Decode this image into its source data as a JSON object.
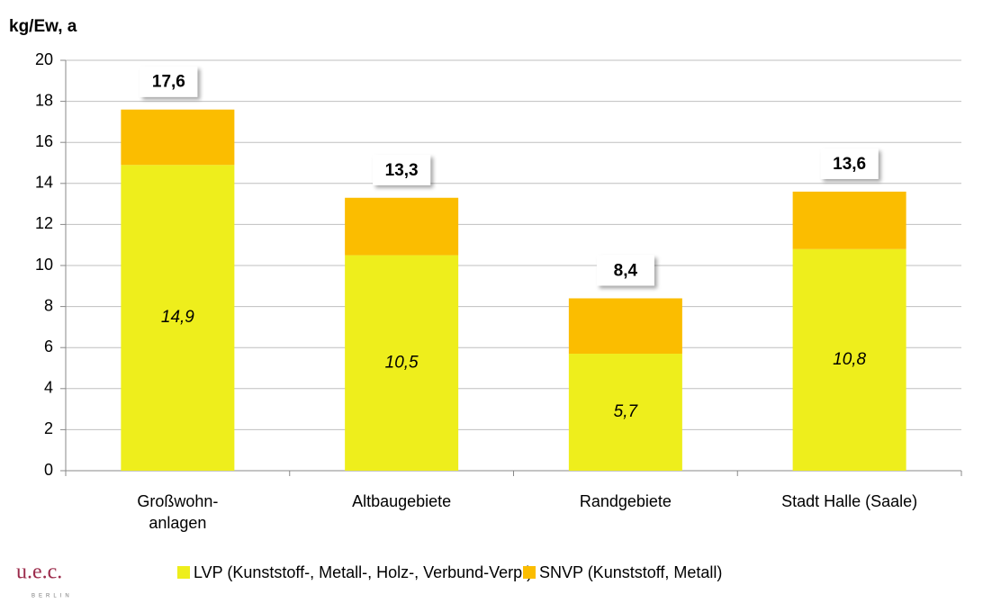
{
  "chart_data": {
    "type": "stacked_bar",
    "y_axis_title": "kg/Ew, a",
    "categories": [
      "Großwohn-\nanlagen",
      "Altbaugebiete",
      "Randgebiete",
      "Stadt Halle (Saale)"
    ],
    "series": [
      {
        "name": "LVP (Kunststoff-, Metall-, Holz-, Verbund-Verp.)",
        "color": "#eeee1c",
        "values": [
          14.9,
          10.5,
          5.7,
          10.8
        ],
        "value_labels": [
          "14,9",
          "10,5",
          "5,7",
          "10,8"
        ]
      },
      {
        "name": "SNVP (Kunststoff, Metall)",
        "color": "#fbbd00",
        "values": [
          2.7,
          2.8,
          2.7,
          2.8
        ]
      }
    ],
    "totals": [
      17.6,
      13.3,
      8.4,
      13.6
    ],
    "total_labels": [
      "17,6",
      "13,3",
      "8,4",
      "13,6"
    ],
    "ylim": [
      0,
      20
    ],
    "yticks": [
      0,
      2,
      4,
      6,
      8,
      10,
      12,
      14,
      16,
      18,
      20
    ],
    "grid": true,
    "logo": {
      "text": "u.e.c.",
      "subtext": "BERLIN"
    }
  }
}
